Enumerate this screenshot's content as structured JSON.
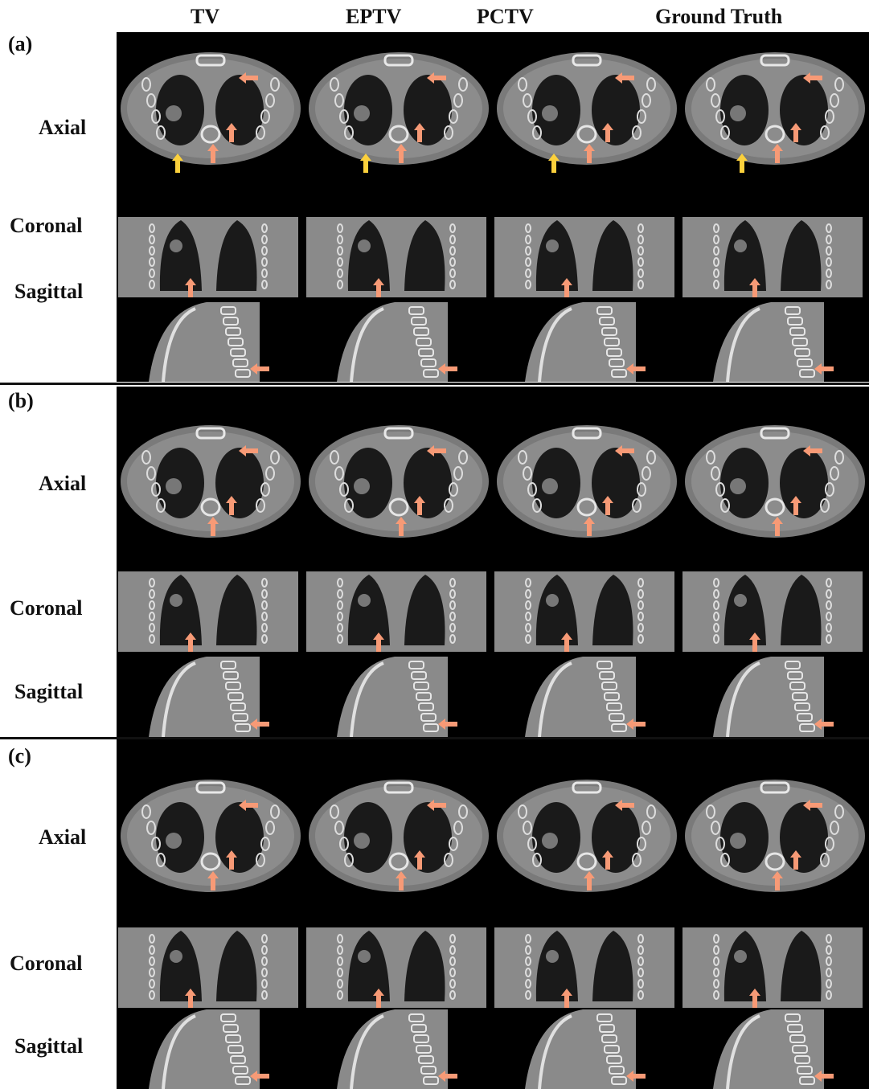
{
  "columns": [
    "TV",
    "EPTV",
    "PCTV",
    "Ground Truth"
  ],
  "panels": [
    {
      "label": "(a)",
      "rows": [
        "Axial",
        "Coronal",
        "Sagittal"
      ]
    },
    {
      "label": "(b)",
      "rows": [
        "Axial",
        "Coronal",
        "Sagittal"
      ]
    },
    {
      "label": "(c)",
      "rows": [
        "Axial",
        "Coronal",
        "Sagittal"
      ]
    }
  ],
  "colors": {
    "arrow_primary": "#f79a76",
    "arrow_secondary": "#fbd03c",
    "background": "#000000"
  }
}
